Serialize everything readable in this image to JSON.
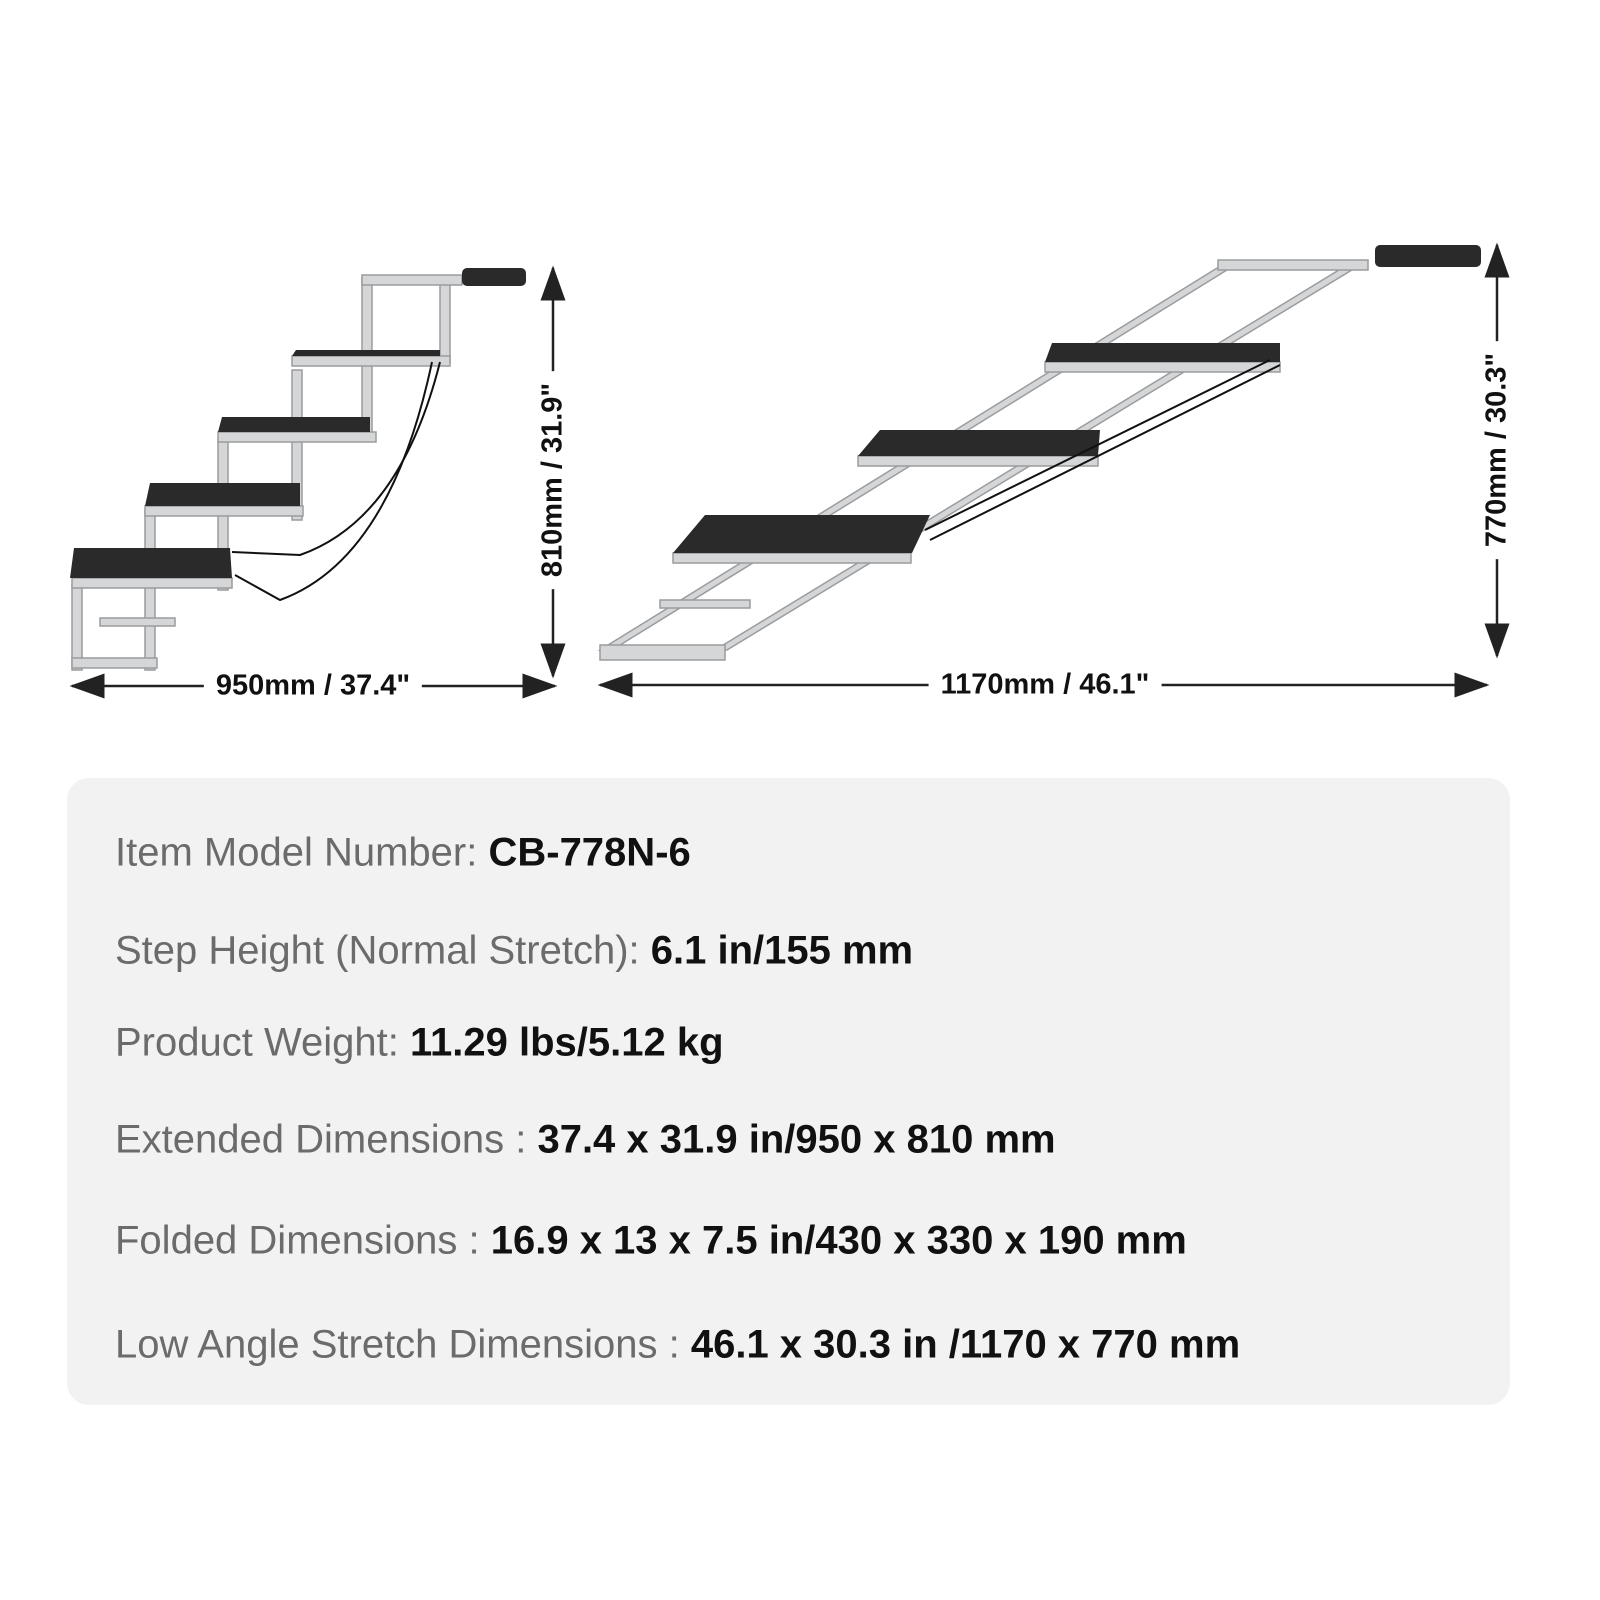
{
  "dimensions": {
    "extended_width": "950mm / 37.4\"",
    "extended_height": "810mm / 31.9\"",
    "low_angle_width": "1170mm / 46.1\"",
    "low_angle_height": "770mm / 30.3\""
  },
  "colors": {
    "frame": "#d4d6d8",
    "tread": "#2a2a2a",
    "handle": "#1a1a1a",
    "panel": "#f2f2f2"
  },
  "specs": [
    {
      "label": "Item Model Number: ",
      "value": "CB-778N-6"
    },
    {
      "label": "Step Height (Normal Stretch): ",
      "value": "6.1 in/155 mm"
    },
    {
      "label": "Product Weight: ",
      "value": "11.29 lbs/5.12 kg"
    },
    {
      "label": "Extended Dimensions : ",
      "value": "37.4 x 31.9 in/950 x 810 mm"
    },
    {
      "label": "Folded Dimensions : ",
      "value": "16.9 x 13 x 7.5 in/430 x 330 x 190 mm"
    },
    {
      "label": "Low Angle Stretch Dimensions : ",
      "value": "46.1 x 30.3 in /1170 x 770 mm"
    }
  ]
}
